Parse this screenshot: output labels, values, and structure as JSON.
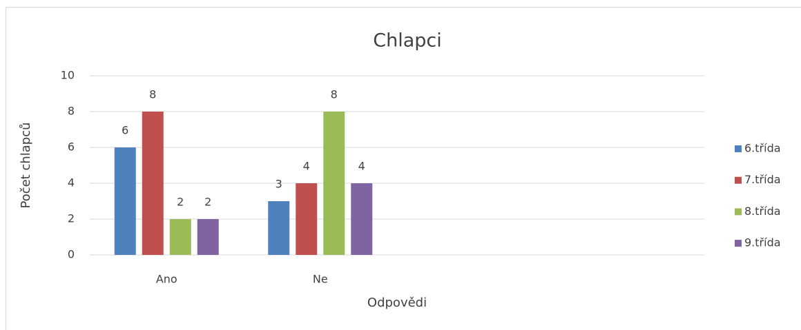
{
  "chart_data": {
    "type": "bar",
    "title": "Chlapci",
    "x_label": "Odpovědi",
    "y_label": "Počet chlapců",
    "categories": [
      "Ano",
      "Ne",
      null,
      null
    ],
    "series": [
      {
        "name": "6.třída",
        "color": "#4f81bd",
        "values": [
          6,
          3,
          null,
          null
        ]
      },
      {
        "name": "7.třída",
        "color": "#c0504d",
        "values": [
          8,
          4,
          null,
          null
        ]
      },
      {
        "name": "8.třída",
        "color": "#9bbb59",
        "values": [
          2,
          8,
          null,
          null
        ]
      },
      {
        "name": "9.třída",
        "color": "#8064a2",
        "values": [
          2,
          4,
          null,
          null
        ]
      }
    ],
    "ylim": [
      0,
      10
    ],
    "yticks": [
      0,
      2,
      4,
      6,
      8,
      10
    ],
    "grid": true,
    "legend": "right",
    "data_labels": true
  }
}
